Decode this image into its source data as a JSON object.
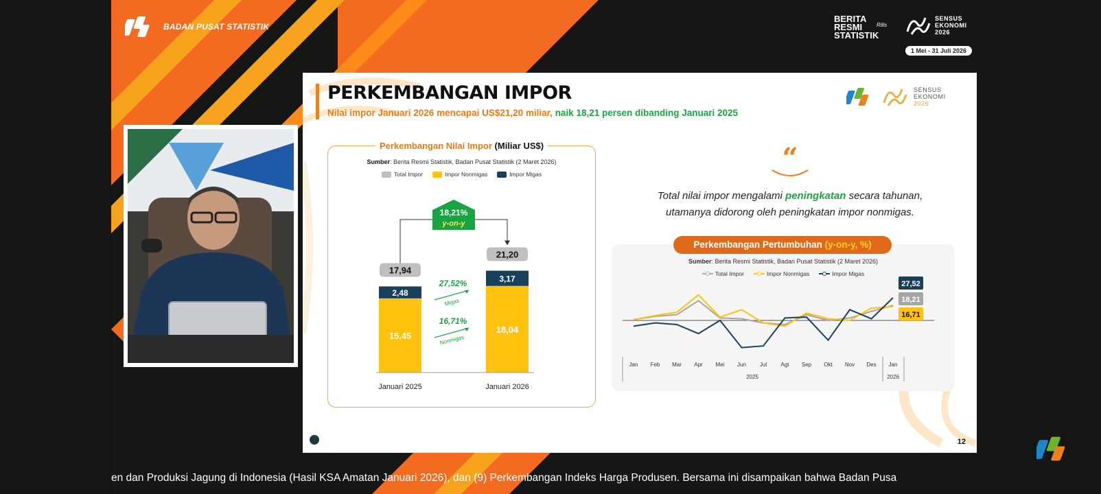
{
  "header": {
    "org_name": "BADAN PUSAT STATISTIK",
    "brs_lines": [
      "BERITA",
      "RESMI",
      "STATISTIK"
    ],
    "brs_rilis": "Rilis",
    "sensus_lines": [
      "SENSUS",
      "EKONOMI",
      "2026"
    ],
    "sensus_date": "1 Mei - 31 Juli 2026"
  },
  "slide": {
    "title": "PERKEMBANGAN IMPOR",
    "subtitle_orange": "Nilai impor Januari 2026 mencapai US$21,20 miliar,",
    "subtitle_green": "naik 18,21 persen dibanding Januari 2025",
    "page_number": "12",
    "logo_sensus_lines": [
      "SENSUS",
      "EKONOMI",
      "2026"
    ],
    "quote_mark": "“",
    "quote_before": "Total nilai impor mengalami ",
    "quote_highlight": "peningkatan",
    "quote_after": " secara tahunan,",
    "quote_line2": "utamanya didorong oleh peningkatan impor nonmigas."
  },
  "chart_left_text": {
    "title_orange": "Perkembangan Nilai Impor",
    "title_black": " (Miliar US$)",
    "source_label": "Sumber",
    "source_text": ": Berita Resmi Statistik, Badan Pusat Statistik (2 Maret 2026)",
    "legend": [
      "Total Impor",
      "Impor Nonmigas",
      "Impor Migas"
    ],
    "yoy_value": "18,21%",
    "yoy_label": "y-on-y",
    "migas_growth": "27,52%",
    "migas_label": "Migas",
    "nonmigas_growth": "16,71%",
    "nonmigas_label": "Nonmigas"
  },
  "chart_right_text": {
    "title_white": "Perkembangan Pertumbuhan ",
    "title_yellow": "(y-on-y, %)",
    "source_label": "Sumber",
    "source_text": ": Berita Resmi Statistik, Badan Pusat Statistik (2 Maret 2026)",
    "legend": [
      "Total Impor",
      "Impor Nonmigas",
      "Impor Migas"
    ],
    "year_2025": "2025",
    "year_2026": "2026"
  },
  "chart_data": [
    {
      "type": "bar",
      "title": "Perkembangan Nilai Impor (Miliar US$)",
      "categories": [
        "Januari 2025",
        "Januari 2026"
      ],
      "series": [
        {
          "name": "Impor Nonmigas",
          "values": [
            15.45,
            18.04
          ],
          "labels": [
            "15,45",
            "18,04"
          ]
        },
        {
          "name": "Impor Migas",
          "values": [
            2.48,
            3.17
          ],
          "labels": [
            "2,48",
            "3,17"
          ]
        },
        {
          "name": "Total Impor",
          "values": [
            17.94,
            21.2
          ],
          "labels": [
            "17,94",
            "21,20"
          ]
        }
      ]
    },
    {
      "type": "line",
      "title": "Perkembangan Pertumbuhan (y-on-y, %)",
      "x": [
        "Jan",
        "Feb",
        "Mar",
        "Apr",
        "Mei",
        "Jun",
        "Jul",
        "Agt",
        "Sep",
        "Okt",
        "Nov",
        "Des",
        "Jan"
      ],
      "series": [
        {
          "name": "Total Impor",
          "values": [
            1,
            5,
            7,
            24,
            3,
            2,
            -3,
            -5,
            7,
            0,
            3,
            11,
            18.21
          ]
        },
        {
          "name": "Impor Nonmigas",
          "values": [
            1,
            6,
            10,
            31,
            4,
            13,
            -3,
            -7,
            9,
            2,
            0,
            15,
            16.71
          ]
        },
        {
          "name": "Impor Migas",
          "values": [
            -7,
            -3,
            -5,
            -16,
            0,
            -33,
            -31,
            3,
            4,
            -24,
            13,
            2,
            27.52
          ]
        }
      ],
      "end_labels": [
        "27,52",
        "18,21",
        "16,71"
      ]
    }
  ],
  "ticker": "en dan Produksi Jagung di Indonesia (Hasil KSA Amatan Januari 2026), dan (9) Perkembangan Indeks Harga Produsen. Bersama ini disampaikan bahwa Badan Pusa",
  "colors": {
    "orange": "#f07f1e",
    "green": "#1aa343",
    "yellow": "#ffc20e",
    "navy": "#17415a",
    "gray": "#bfbfbf"
  }
}
